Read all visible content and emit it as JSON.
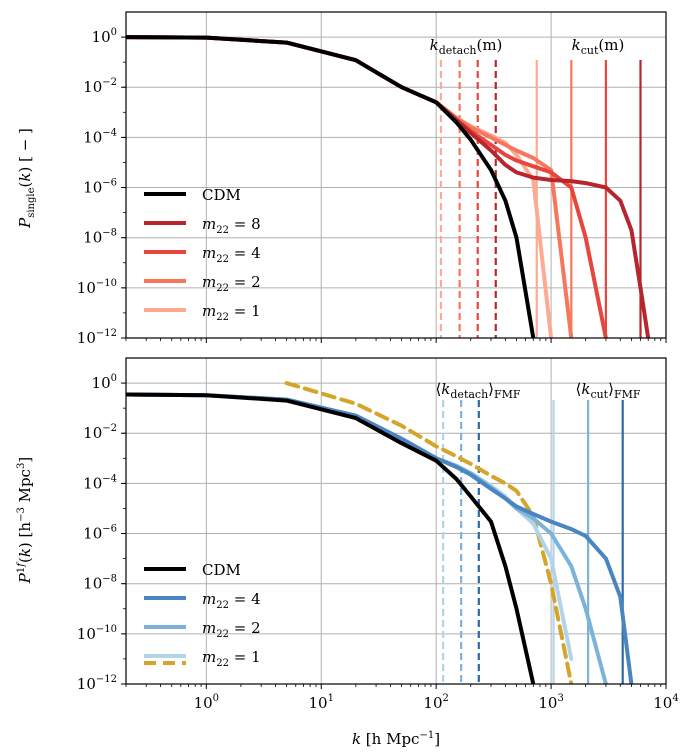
{
  "chart_data": [
    {
      "type": "line",
      "scale": {
        "x": "log",
        "y": "log"
      },
      "xlim": [
        0.2,
        10000
      ],
      "ylim": [
        1e-12,
        10
      ],
      "grid": true,
      "legend_position": "lower-left",
      "xlabel": "",
      "ylabel": "P_single(k) [ − ]",
      "annotations": [
        "k_detach(m)",
        "k_cut(m)"
      ],
      "x": [
        0.2,
        1,
        5,
        20,
        50,
        100,
        150,
        200,
        300,
        400,
        500,
        700,
        1000,
        1500,
        2000,
        3000,
        4000,
        5000,
        6000,
        7000
      ],
      "series": [
        {
          "name": "CDM",
          "color": "#000000",
          "values": [
            1.0,
            0.95,
            0.6,
            0.12,
            0.01,
            0.0025,
            0.0004,
            8e-05,
            5e-06,
            3e-07,
            1e-08,
            1e-12,
            null,
            null,
            null,
            null,
            null,
            null,
            null,
            null
          ]
        },
        {
          "name": "m22 = 8",
          "color": "#b8252e",
          "values": [
            1.0,
            0.95,
            0.6,
            0.12,
            0.01,
            0.0025,
            0.0005,
            0.00015,
            3e-05,
            8e-06,
            4e-06,
            2.5e-06,
            2e-06,
            1.8e-06,
            1.5e-06,
            1e-06,
            3e-07,
            2e-08,
            1e-10,
            1e-12
          ]
        },
        {
          "name": "m22 = 4",
          "color": "#e8453c",
          "values": [
            1.0,
            0.95,
            0.6,
            0.12,
            0.01,
            0.0025,
            0.0005,
            0.00018,
            5e-05,
            2e-05,
            1.2e-05,
            7e-06,
            4e-06,
            1e-06,
            1e-08,
            1e-12,
            null,
            null,
            null,
            null
          ]
        },
        {
          "name": "m22 = 2",
          "color": "#f6775c",
          "values": [
            1.0,
            0.95,
            0.6,
            0.12,
            0.01,
            0.0025,
            0.0006,
            0.00025,
            0.0001,
            5e-05,
            3e-05,
            1.5e-05,
            5e-06,
            1e-12,
            null,
            null,
            null,
            null,
            null,
            null
          ]
        },
        {
          "name": "m22 = 1",
          "color": "#fcab92",
          "values": [
            1.0,
            0.95,
            0.6,
            0.12,
            0.01,
            0.0025,
            0.0006,
            0.00028,
            0.00012,
            6e-05,
            2e-05,
            2e-06,
            1e-12,
            null,
            null,
            null,
            null,
            null,
            null,
            null
          ]
        }
      ],
      "vlines": [
        {
          "x": 110,
          "style": "dashed",
          "color": "#fcab92"
        },
        {
          "x": 160,
          "style": "dashed",
          "color": "#f6775c"
        },
        {
          "x": 230,
          "style": "dashed",
          "color": "#e8453c"
        },
        {
          "x": 330,
          "style": "dashed",
          "color": "#b8252e"
        },
        {
          "x": 750,
          "style": "solid",
          "color": "#fcab92"
        },
        {
          "x": 1500,
          "style": "solid",
          "color": "#f6775c"
        },
        {
          "x": 3000,
          "style": "solid",
          "color": "#e8453c"
        },
        {
          "x": 6000,
          "style": "solid",
          "color": "#b8252e"
        }
      ],
      "legend": [
        {
          "label": "CDM",
          "color": "#000000",
          "style": "solid"
        },
        {
          "label": "m22 = 8",
          "color": "#b8252e",
          "style": "solid"
        },
        {
          "label": "m22 = 4",
          "color": "#e8453c",
          "style": "solid"
        },
        {
          "label": "m22 = 2",
          "color": "#f6775c",
          "style": "solid"
        },
        {
          "label": "m22 = 1",
          "color": "#fcab92",
          "style": "solid"
        }
      ]
    },
    {
      "type": "line",
      "scale": {
        "x": "log",
        "y": "log"
      },
      "xlim": [
        0.2,
        10000
      ],
      "ylim": [
        1e-12,
        10
      ],
      "grid": true,
      "legend_position": "lower-left",
      "xlabel": "k [h Mpc⁻¹]",
      "ylabel": "P^1f(k) [h⁻³ Mpc³]",
      "annotations": [
        "⟨k_detach⟩_FMF",
        "⟨k_cut⟩_FMF"
      ],
      "x": [
        0.2,
        1,
        5,
        20,
        50,
        100,
        150,
        200,
        300,
        400,
        500,
        700,
        1000,
        1500,
        2000,
        3000,
        4000,
        5000
      ],
      "series": [
        {
          "name": "CDM",
          "color": "#000000",
          "values": [
            0.35,
            0.33,
            0.2,
            0.04,
            0.004,
            0.0008,
            0.00015,
            3e-05,
            3e-06,
            5e-08,
            1e-09,
            1e-12,
            null,
            null,
            null,
            null,
            null,
            null
          ]
        },
        {
          "name": "m22 = 4",
          "color": "#4a85c0",
          "values": [
            0.35,
            0.33,
            0.22,
            0.05,
            0.006,
            0.001,
            0.00045,
            0.00022,
            6e-05,
            2.5e-05,
            1.2e-05,
            6e-06,
            3e-06,
            1.5e-06,
            8e-07,
            1e-07,
            3e-09,
            1e-12
          ]
        },
        {
          "name": "m22 = 2",
          "color": "#7bb3d9",
          "values": [
            0.35,
            0.33,
            0.22,
            0.05,
            0.006,
            0.001,
            0.0005,
            0.00025,
            7e-05,
            2.5e-05,
            1e-05,
            4e-06,
            1e-06,
            5e-08,
            1e-09,
            1e-12,
            null,
            null
          ]
        },
        {
          "name": "m22 = 1",
          "color": "#b3d4e8",
          "values": [
            0.35,
            0.33,
            0.22,
            0.05,
            0.006,
            0.001,
            0.0005,
            0.00026,
            8e-05,
            3e-05,
            1e-05,
            2.5e-06,
            1e-07,
            1e-11,
            null,
            null,
            null,
            null
          ]
        },
        {
          "name": "m22 = 1",
          "color": "#d4a52a",
          "dash": true,
          "values": [
            null,
            null,
            1.0,
            0.15,
            0.02,
            0.003,
            0.0012,
            0.0006,
            0.0002,
            0.0001,
            5e-05,
            5e-06,
            1e-08,
            1e-12,
            null,
            null,
            null,
            null
          ]
        }
      ],
      "vlines": [
        {
          "x": 115,
          "style": "dashed",
          "color": "#b3d4e8"
        },
        {
          "x": 165,
          "style": "dashed",
          "color": "#7bb3d9"
        },
        {
          "x": 235,
          "style": "dashed",
          "color": "#2b6aa8"
        },
        {
          "x": 1050,
          "style": "solid",
          "color": "#b3d4e8"
        },
        {
          "x": 2100,
          "style": "solid",
          "color": "#7bb3d9"
        },
        {
          "x": 4200,
          "style": "solid",
          "color": "#2b6aa8"
        }
      ],
      "legend": [
        {
          "label": "CDM",
          "color": "#000000",
          "style": "solid"
        },
        {
          "label": "m22 = 4",
          "color": "#4a85c0",
          "style": "solid"
        },
        {
          "label": "m22 = 2",
          "color": "#7bb3d9",
          "style": "solid"
        },
        {
          "label": "m22 = 1",
          "color": "#b3d4e8",
          "style": "solid",
          "overlay_color": "#d4a52a"
        }
      ]
    }
  ],
  "axis_ticks": {
    "top_y": [
      "10^0",
      "10^-2",
      "10^-4",
      "10^-6",
      "10^-8",
      "10^-10",
      "10^-12"
    ],
    "bottom_y": [
      "10^0",
      "10^-2",
      "10^-4",
      "10^-6",
      "10^-8",
      "10^-10",
      "10^-12"
    ],
    "x": [
      "10^0",
      "10^1",
      "10^2",
      "10^3",
      "10^4"
    ]
  },
  "labels": {
    "top_ylabel": "P_single(k) [ − ]",
    "bottom_ylabel": "P^1f(k) [h^−3 Mpc^3]",
    "xlabel": "k [h Mpc^−1]",
    "top_annotation_detach": "k_detach(m)",
    "top_annotation_cut": "k_cut(m)",
    "bottom_annotation_detach": "⟨k_detach⟩_FMF",
    "bottom_annotation_cut": "⟨k_cut⟩_FMF"
  }
}
